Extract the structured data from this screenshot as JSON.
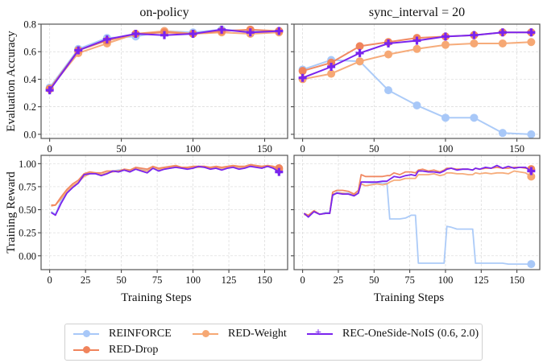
{
  "chart_data": [
    {
      "type": "line",
      "title": "on-policy",
      "xlabel": "",
      "ylabel": "Evaluation Accuracy",
      "x": [
        0,
        20,
        40,
        60,
        80,
        100,
        120,
        140,
        160
      ],
      "xticks": [
        "0",
        "50",
        "100",
        "150"
      ],
      "yticks": [
        "0.0",
        "0.2",
        "0.4",
        "0.6",
        "0.8"
      ],
      "xlim": [
        -6,
        166
      ],
      "ylim": [
        -0.03,
        0.8
      ],
      "grid": true,
      "series": [
        {
          "name": "REINFORCE",
          "values": [
            0.34,
            0.62,
            0.7,
            0.71,
            0.75,
            0.74,
            0.76,
            0.75,
            0.75
          ]
        },
        {
          "name": "RED-Drop",
          "values": [
            0.33,
            0.61,
            0.68,
            0.73,
            0.74,
            0.73,
            0.75,
            0.76,
            0.75
          ]
        },
        {
          "name": "RED-Weight",
          "values": [
            0.33,
            0.59,
            0.66,
            0.73,
            0.75,
            0.73,
            0.74,
            0.73,
            0.74
          ]
        },
        {
          "name": "REC-OneSide-NoIS (0.6, 2.0)",
          "values": [
            0.32,
            0.61,
            0.69,
            0.73,
            0.72,
            0.73,
            0.76,
            0.74,
            0.75
          ]
        }
      ]
    },
    {
      "type": "line",
      "title": "sync_interval = 20",
      "xlabel": "",
      "ylabel": "",
      "x": [
        0,
        20,
        40,
        60,
        80,
        100,
        120,
        140,
        160
      ],
      "xticks": [
        "0",
        "50",
        "100",
        "150"
      ],
      "yticks": [
        "0.0",
        "0.2",
        "0.4",
        "0.6",
        "0.8"
      ],
      "xlim": [
        -6,
        166
      ],
      "ylim": [
        -0.03,
        0.8
      ],
      "grid": true,
      "series": [
        {
          "name": "REINFORCE",
          "values": [
            0.47,
            0.54,
            0.53,
            0.32,
            0.21,
            0.12,
            0.12,
            0.01,
            0.0
          ]
        },
        {
          "name": "RED-Drop",
          "values": [
            0.46,
            0.52,
            0.64,
            0.67,
            0.7,
            0.71,
            0.72,
            0.74,
            0.74
          ]
        },
        {
          "name": "RED-Weight",
          "values": [
            0.4,
            0.44,
            0.53,
            0.58,
            0.62,
            0.65,
            0.66,
            0.66,
            0.67
          ]
        },
        {
          "name": "REC-OneSide-NoIS (0.6, 2.0)",
          "values": [
            0.41,
            0.49,
            0.59,
            0.66,
            0.68,
            0.71,
            0.72,
            0.74,
            0.74
          ]
        }
      ]
    },
    {
      "type": "line",
      "title": "",
      "xlabel": "Training Steps",
      "ylabel": "Training Reward",
      "x": [
        1,
        4,
        8,
        12,
        16,
        20,
        24,
        28,
        32,
        36,
        40,
        44,
        48,
        52,
        56,
        60,
        64,
        68,
        72,
        76,
        80,
        84,
        88,
        92,
        96,
        100,
        104,
        108,
        112,
        116,
        120,
        124,
        128,
        132,
        136,
        140,
        144,
        148,
        152,
        156,
        160
      ],
      "xticks": [
        "0",
        "25",
        "50",
        "75",
        "100",
        "125",
        "150"
      ],
      "yticks": [
        "0.00",
        "0.25",
        "0.50",
        "0.75",
        "1.00"
      ],
      "xlim": [
        -6,
        166
      ],
      "ylim": [
        -0.15,
        1.09
      ],
      "grid": true,
      "end_markers": true,
      "series": [
        {
          "name": "REINFORCE",
          "values": [
            0.48,
            0.45,
            0.6,
            0.68,
            0.74,
            0.8,
            0.88,
            0.9,
            0.9,
            0.88,
            0.9,
            0.92,
            0.93,
            0.93,
            0.92,
            0.95,
            0.94,
            0.92,
            0.95,
            0.93,
            0.94,
            0.95,
            0.96,
            0.96,
            0.95,
            0.96,
            0.96,
            0.96,
            0.95,
            0.96,
            0.94,
            0.96,
            0.97,
            0.95,
            0.96,
            0.97,
            0.97,
            0.96,
            0.97,
            0.95,
            0.93
          ]
        },
        {
          "name": "RED-Drop",
          "values": [
            0.55,
            0.55,
            0.64,
            0.72,
            0.78,
            0.82,
            0.89,
            0.91,
            0.9,
            0.9,
            0.92,
            0.92,
            0.92,
            0.94,
            0.93,
            0.96,
            0.95,
            0.94,
            0.97,
            0.95,
            0.96,
            0.97,
            0.98,
            0.96,
            0.96,
            0.97,
            0.97,
            0.97,
            0.96,
            0.97,
            0.96,
            0.97,
            0.98,
            0.97,
            0.97,
            0.99,
            0.98,
            0.97,
            0.98,
            0.97,
            0.95
          ]
        },
        {
          "name": "RED-Weight",
          "values": [
            0.54,
            0.55,
            0.62,
            0.7,
            0.76,
            0.8,
            0.86,
            0.89,
            0.9,
            0.88,
            0.9,
            0.91,
            0.92,
            0.93,
            0.91,
            0.95,
            0.93,
            0.92,
            0.96,
            0.94,
            0.95,
            0.96,
            0.97,
            0.96,
            0.95,
            0.96,
            0.96,
            0.97,
            0.95,
            0.96,
            0.95,
            0.96,
            0.97,
            0.96,
            0.96,
            0.98,
            0.97,
            0.96,
            0.97,
            0.96,
            0.94
          ]
        },
        {
          "name": "REC-OneSide-NoIS (0.6, 2.0)",
          "values": [
            0.47,
            0.44,
            0.57,
            0.68,
            0.74,
            0.79,
            0.88,
            0.89,
            0.89,
            0.87,
            0.89,
            0.92,
            0.91,
            0.93,
            0.91,
            0.94,
            0.92,
            0.9,
            0.95,
            0.92,
            0.94,
            0.95,
            0.96,
            0.95,
            0.94,
            0.95,
            0.97,
            0.96,
            0.94,
            0.95,
            0.93,
            0.95,
            0.96,
            0.94,
            0.95,
            0.97,
            0.96,
            0.95,
            0.97,
            0.95,
            0.91
          ]
        }
      ]
    },
    {
      "type": "line",
      "title": "",
      "xlabel": "Training Steps",
      "ylabel": "",
      "x": [
        1,
        4,
        8,
        12,
        16,
        19,
        21,
        24,
        28,
        32,
        36,
        39,
        41,
        44,
        48,
        52,
        56,
        59,
        61,
        64,
        68,
        72,
        76,
        79,
        81,
        84,
        88,
        92,
        96,
        99,
        101,
        104,
        108,
        112,
        116,
        119,
        121,
        124,
        128,
        132,
        136,
        140,
        144,
        148,
        152,
        156,
        160
      ],
      "xticks": [
        "0",
        "25",
        "50",
        "75",
        "100",
        "125",
        "150"
      ],
      "yticks": [
        "0.00",
        "0.25",
        "0.50",
        "0.75",
        "1.00"
      ],
      "xlim": [
        -6,
        166
      ],
      "ylim": [
        -0.15,
        1.09
      ],
      "grid": true,
      "end_markers": true,
      "series": [
        {
          "name": "REINFORCE",
          "values": [
            0.46,
            0.43,
            0.48,
            0.45,
            0.47,
            0.47,
            0.65,
            0.69,
            0.68,
            0.68,
            0.66,
            0.69,
            0.8,
            0.8,
            0.79,
            0.79,
            0.79,
            0.79,
            0.4,
            0.4,
            0.4,
            0.41,
            0.44,
            0.44,
            -0.08,
            -0.08,
            -0.08,
            -0.08,
            -0.08,
            -0.08,
            0.32,
            0.31,
            0.29,
            0.29,
            0.29,
            0.29,
            -0.08,
            -0.08,
            -0.08,
            -0.08,
            -0.08,
            -0.08,
            -0.09,
            -0.09,
            -0.09,
            -0.09,
            -0.09
          ]
        },
        {
          "name": "RED-Drop",
          "values": [
            0.46,
            0.44,
            0.49,
            0.45,
            0.46,
            0.46,
            0.69,
            0.71,
            0.71,
            0.7,
            0.67,
            0.71,
            0.88,
            0.86,
            0.86,
            0.86,
            0.86,
            0.87,
            0.87,
            0.9,
            0.88,
            0.91,
            0.91,
            0.9,
            0.93,
            0.94,
            0.92,
            0.93,
            0.91,
            0.93,
            0.95,
            0.95,
            0.94,
            0.94,
            0.94,
            0.93,
            0.95,
            0.94,
            0.95,
            0.95,
            0.96,
            0.95,
            0.95,
            0.96,
            0.96,
            0.95,
            0.94
          ]
        },
        {
          "name": "RED-Weight",
          "values": [
            0.45,
            0.43,
            0.48,
            0.45,
            0.46,
            0.46,
            0.67,
            0.68,
            0.68,
            0.67,
            0.66,
            0.68,
            0.78,
            0.76,
            0.77,
            0.78,
            0.77,
            0.78,
            0.8,
            0.82,
            0.82,
            0.84,
            0.84,
            0.84,
            0.88,
            0.88,
            0.88,
            0.89,
            0.87,
            0.88,
            0.9,
            0.9,
            0.89,
            0.89,
            0.88,
            0.88,
            0.9,
            0.89,
            0.9,
            0.89,
            0.9,
            0.9,
            0.89,
            0.92,
            0.91,
            0.9,
            0.86
          ]
        },
        {
          "name": "REC-OneSide-NoIS (0.6, 2.0)",
          "values": [
            0.46,
            0.42,
            0.48,
            0.45,
            0.46,
            0.46,
            0.66,
            0.68,
            0.67,
            0.67,
            0.65,
            0.68,
            0.8,
            0.8,
            0.8,
            0.8,
            0.81,
            0.81,
            0.83,
            0.86,
            0.85,
            0.87,
            0.88,
            0.87,
            0.92,
            0.92,
            0.91,
            0.91,
            0.9,
            0.92,
            0.94,
            0.95,
            0.93,
            0.94,
            0.94,
            0.93,
            0.95,
            0.94,
            0.96,
            0.95,
            0.98,
            0.95,
            0.97,
            0.95,
            0.96,
            0.96,
            0.92
          ]
        }
      ]
    }
  ],
  "legend": {
    "items": [
      {
        "label": "REINFORCE",
        "color": "#a8c8f8",
        "marker": "circle"
      },
      {
        "label": "RED-Drop",
        "color": "#f0845c",
        "marker": "circle"
      },
      {
        "label": "RED-Weight",
        "color": "#f6a874",
        "marker": "circle"
      },
      {
        "label": "REC-OneSide-NoIS (0.6, 2.0)",
        "color": "#7a24ee",
        "marker": "plus"
      }
    ]
  },
  "colors": {
    "REINFORCE": "#a8c8f8",
    "RED-Drop": "#f0845c",
    "RED-Weight": "#f6a874",
    "REC-OneSide-NoIS (0.6, 2.0)": "#7a24ee"
  }
}
